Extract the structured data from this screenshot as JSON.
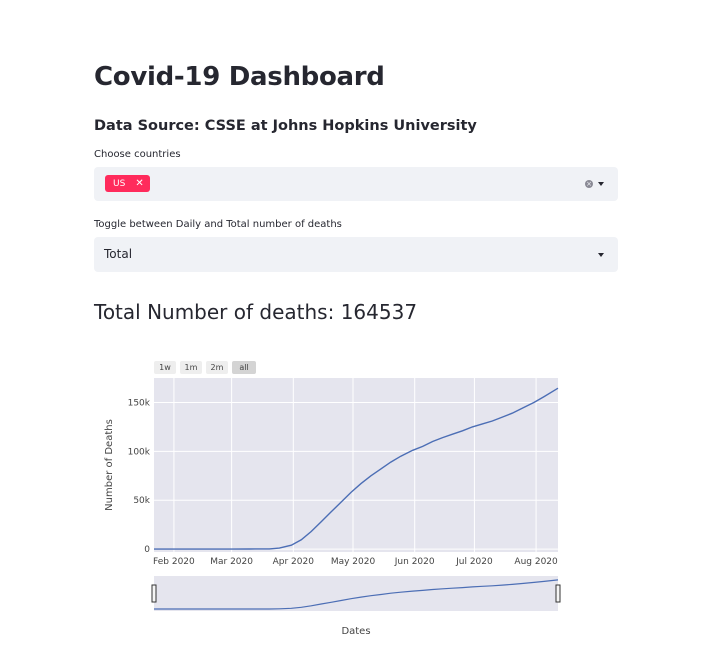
{
  "app": {
    "title": "Covid-19 Dashboard",
    "subtitle": "Data Source: CSSE at Johns Hopkins University"
  },
  "countries": {
    "label": "Choose countries",
    "selected": [
      "US"
    ],
    "remove_glyph": "✕",
    "clear_glyph": "×"
  },
  "toggle": {
    "label": "Toggle between Daily and Total number of deaths",
    "value": "Total"
  },
  "summary": {
    "text": "Total Number of deaths: 164537"
  },
  "range_selector": {
    "buttons": [
      "1w",
      "1m",
      "2m",
      "all"
    ],
    "active": "all"
  },
  "chart_data": {
    "type": "line",
    "xlabel": "Dates",
    "ylabel": "Number of Deaths",
    "x_ticks": [
      "Feb 2020",
      "Mar 2020",
      "Apr 2020",
      "May 2020",
      "Jun 2020",
      "Jul 2020",
      "Aug 2020"
    ],
    "y_ticks": [
      "0",
      "50k",
      "100k",
      "150k"
    ],
    "xlim": [
      "2020-01-22",
      "2020-08-12"
    ],
    "ylim": [
      -3000,
      175000
    ],
    "grid": true,
    "rangeslider": true,
    "series": [
      {
        "color": "#4c6eb5",
        "points": [
          [
            "2020-01-22",
            0
          ],
          [
            "2020-02-15",
            0
          ],
          [
            "2020-03-01",
            1
          ],
          [
            "2020-03-10",
            30
          ],
          [
            "2020-03-20",
            200
          ],
          [
            "2020-03-25",
            1000
          ],
          [
            "2020-03-31",
            4000
          ],
          [
            "2020-04-05",
            9500
          ],
          [
            "2020-04-10",
            18000
          ],
          [
            "2020-04-15",
            28000
          ],
          [
            "2020-04-20",
            38000
          ],
          [
            "2020-04-25",
            48000
          ],
          [
            "2020-04-30",
            58000
          ],
          [
            "2020-05-05",
            67000
          ],
          [
            "2020-05-10",
            75000
          ],
          [
            "2020-05-15",
            82000
          ],
          [
            "2020-05-20",
            89000
          ],
          [
            "2020-05-25",
            95000
          ],
          [
            "2020-05-31",
            101000
          ],
          [
            "2020-06-05",
            105000
          ],
          [
            "2020-06-10",
            110000
          ],
          [
            "2020-06-15",
            114000
          ],
          [
            "2020-06-20",
            117500
          ],
          [
            "2020-06-25",
            121000
          ],
          [
            "2020-06-30",
            125000
          ],
          [
            "2020-07-05",
            128000
          ],
          [
            "2020-07-10",
            131000
          ],
          [
            "2020-07-15",
            135000
          ],
          [
            "2020-07-20",
            139000
          ],
          [
            "2020-07-25",
            144000
          ],
          [
            "2020-07-31",
            150000
          ],
          [
            "2020-08-05",
            156000
          ],
          [
            "2020-08-12",
            164537
          ]
        ]
      }
    ]
  }
}
